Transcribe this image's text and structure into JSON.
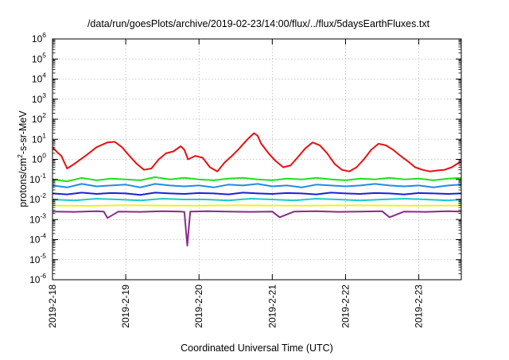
{
  "chart_data": {
    "type": "line",
    "title": "/data/run/goesPlots/archive/2019-02-23/14:00/flux/../flux/5daysEarthFluxes.txt",
    "xlabel": "Coordinated Universal Time (UTC)",
    "ylabel": "protons/cm²-s-sr-MeV",
    "ylabel_parts": {
      "base": "protons/cm",
      "sup": "2",
      "rest": "-s-sr-MeV"
    },
    "yscale": "log",
    "ylim_exp": [
      -6,
      6
    ],
    "ytick_exponents": [
      -6,
      -5,
      -4,
      -3,
      -2,
      -1,
      0,
      1,
      2,
      3,
      4,
      5,
      6
    ],
    "ytick_base": "10",
    "xlim": [
      "2019-2-18",
      "2019-2-23 14:00"
    ],
    "xticks": [
      "2019-2-18",
      "2019-2-19",
      "2019-2-20",
      "2019-2-21",
      "2019-2-22",
      "2019-2-23"
    ],
    "x_unit": "days since 2019-2-18 00:00",
    "x_range": [
      0,
      5.58
    ],
    "grid": true,
    "legend": "none",
    "series": [
      {
        "color": "#e81010",
        "x": [
          0,
          0.08,
          0.12,
          0.2,
          0.3,
          0.45,
          0.6,
          0.75,
          0.85,
          0.95,
          1.05,
          1.15,
          1.25,
          1.35,
          1.45,
          1.55,
          1.65,
          1.75,
          1.8,
          1.85,
          1.95,
          2.05,
          2.15,
          2.25,
          2.35,
          2.45,
          2.55,
          2.65,
          2.75,
          2.8,
          2.85,
          2.95,
          3.05,
          3.15,
          3.25,
          3.35,
          3.45,
          3.55,
          3.65,
          3.75,
          3.85,
          3.95,
          4.05,
          4.15,
          4.25,
          4.35,
          4.45,
          4.55,
          4.65,
          4.75,
          4.85,
          4.95,
          5.05,
          5.15,
          5.25,
          5.35,
          5.45,
          5.58
        ],
        "y": [
          4,
          2,
          1.5,
          0.35,
          0.6,
          1.5,
          4,
          7,
          7.5,
          4,
          1.5,
          0.6,
          0.3,
          0.35,
          1,
          2,
          2.5,
          4.5,
          3,
          1,
          1.5,
          1.2,
          0.4,
          0.25,
          0.7,
          1.5,
          3.5,
          9,
          20,
          15,
          6,
          2,
          0.8,
          0.4,
          0.5,
          1.3,
          3.5,
          7,
          5,
          2,
          0.6,
          0.3,
          0.25,
          0.4,
          1,
          3,
          6,
          5,
          3,
          1.5,
          0.8,
          0.4,
          0.3,
          0.25,
          0.28,
          0.3,
          0.4,
          0.8
        ]
      },
      {
        "color": "#22e020",
        "x": [
          0,
          0.2,
          0.4,
          0.6,
          0.8,
          1.0,
          1.2,
          1.4,
          1.6,
          1.8,
          2.0,
          2.2,
          2.4,
          2.6,
          2.8,
          3.0,
          3.2,
          3.4,
          3.6,
          3.8,
          4.0,
          4.2,
          4.4,
          4.6,
          4.8,
          5.0,
          5.2,
          5.4,
          5.58
        ],
        "y": [
          0.1,
          0.08,
          0.12,
          0.09,
          0.11,
          0.1,
          0.09,
          0.13,
          0.1,
          0.12,
          0.1,
          0.09,
          0.11,
          0.12,
          0.1,
          0.09,
          0.11,
          0.1,
          0.12,
          0.1,
          0.09,
          0.11,
          0.1,
          0.12,
          0.1,
          0.11,
          0.09,
          0.11,
          0.12
        ]
      },
      {
        "color": "#1e8ce6",
        "x": [
          0,
          0.2,
          0.4,
          0.6,
          0.8,
          1.0,
          1.2,
          1.4,
          1.6,
          1.8,
          2.0,
          2.2,
          2.4,
          2.6,
          2.8,
          3.0,
          3.2,
          3.4,
          3.6,
          3.8,
          4.0,
          4.2,
          4.4,
          4.6,
          4.8,
          5.0,
          5.2,
          5.4,
          5.58
        ],
        "y": [
          0.05,
          0.04,
          0.06,
          0.045,
          0.05,
          0.055,
          0.04,
          0.06,
          0.05,
          0.045,
          0.05,
          0.04,
          0.055,
          0.05,
          0.06,
          0.045,
          0.05,
          0.04,
          0.055,
          0.05,
          0.045,
          0.05,
          0.06,
          0.05,
          0.045,
          0.05,
          0.04,
          0.05,
          0.055
        ]
      },
      {
        "color": "#1a22d8",
        "x": [
          0,
          0.2,
          0.4,
          0.6,
          0.8,
          1.0,
          1.2,
          1.4,
          1.6,
          1.8,
          2.0,
          2.2,
          2.4,
          2.6,
          2.8,
          3.0,
          3.2,
          3.4,
          3.6,
          3.8,
          4.0,
          4.2,
          4.4,
          4.6,
          4.8,
          5.0,
          5.2,
          5.4,
          5.58
        ],
        "y": [
          0.02,
          0.018,
          0.022,
          0.019,
          0.021,
          0.02,
          0.017,
          0.022,
          0.02,
          0.019,
          0.021,
          0.02,
          0.018,
          0.022,
          0.02,
          0.019,
          0.021,
          0.02,
          0.018,
          0.022,
          0.02,
          0.019,
          0.021,
          0.02,
          0.018,
          0.021,
          0.02,
          0.019,
          0.02
        ]
      },
      {
        "color": "#20c8c8",
        "x": [
          0,
          0.3,
          0.6,
          0.9,
          1.2,
          1.5,
          1.8,
          2.1,
          2.4,
          2.7,
          3.0,
          3.3,
          3.6,
          3.9,
          4.2,
          4.5,
          4.8,
          5.1,
          5.4,
          5.58
        ],
        "y": [
          0.01,
          0.009,
          0.011,
          0.01,
          0.009,
          0.011,
          0.01,
          0.01,
          0.009,
          0.011,
          0.01,
          0.009,
          0.011,
          0.01,
          0.009,
          0.01,
          0.011,
          0.01,
          0.009,
          0.01
        ]
      },
      {
        "color": "#f0f020",
        "x": [
          0,
          0.5,
          1.0,
          1.5,
          2.0,
          2.5,
          3.0,
          3.5,
          4.0,
          4.5,
          5.0,
          5.58
        ],
        "y": [
          0.005,
          0.0048,
          0.0052,
          0.005,
          0.0049,
          0.0051,
          0.005,
          0.0049,
          0.0051,
          0.005,
          0.0049,
          0.005
        ]
      },
      {
        "color": "#8a2a8a",
        "x": [
          0,
          0.3,
          0.6,
          0.7,
          0.75,
          0.9,
          1.2,
          1.5,
          1.75,
          1.8,
          1.84,
          1.88,
          2.1,
          2.4,
          2.7,
          3.0,
          3.1,
          3.3,
          3.6,
          3.9,
          4.2,
          4.5,
          4.6,
          4.8,
          5.1,
          5.4,
          5.58
        ],
        "y": [
          0.0025,
          0.0024,
          0.0026,
          0.0025,
          0.0012,
          0.0025,
          0.0024,
          0.0026,
          0.0025,
          0.0024,
          5e-05,
          0.0025,
          0.0026,
          0.0025,
          0.0024,
          0.0025,
          0.0013,
          0.0025,
          0.0026,
          0.0024,
          0.0025,
          0.0026,
          0.0013,
          0.0025,
          0.0024,
          0.0026,
          0.0025
        ]
      }
    ]
  }
}
